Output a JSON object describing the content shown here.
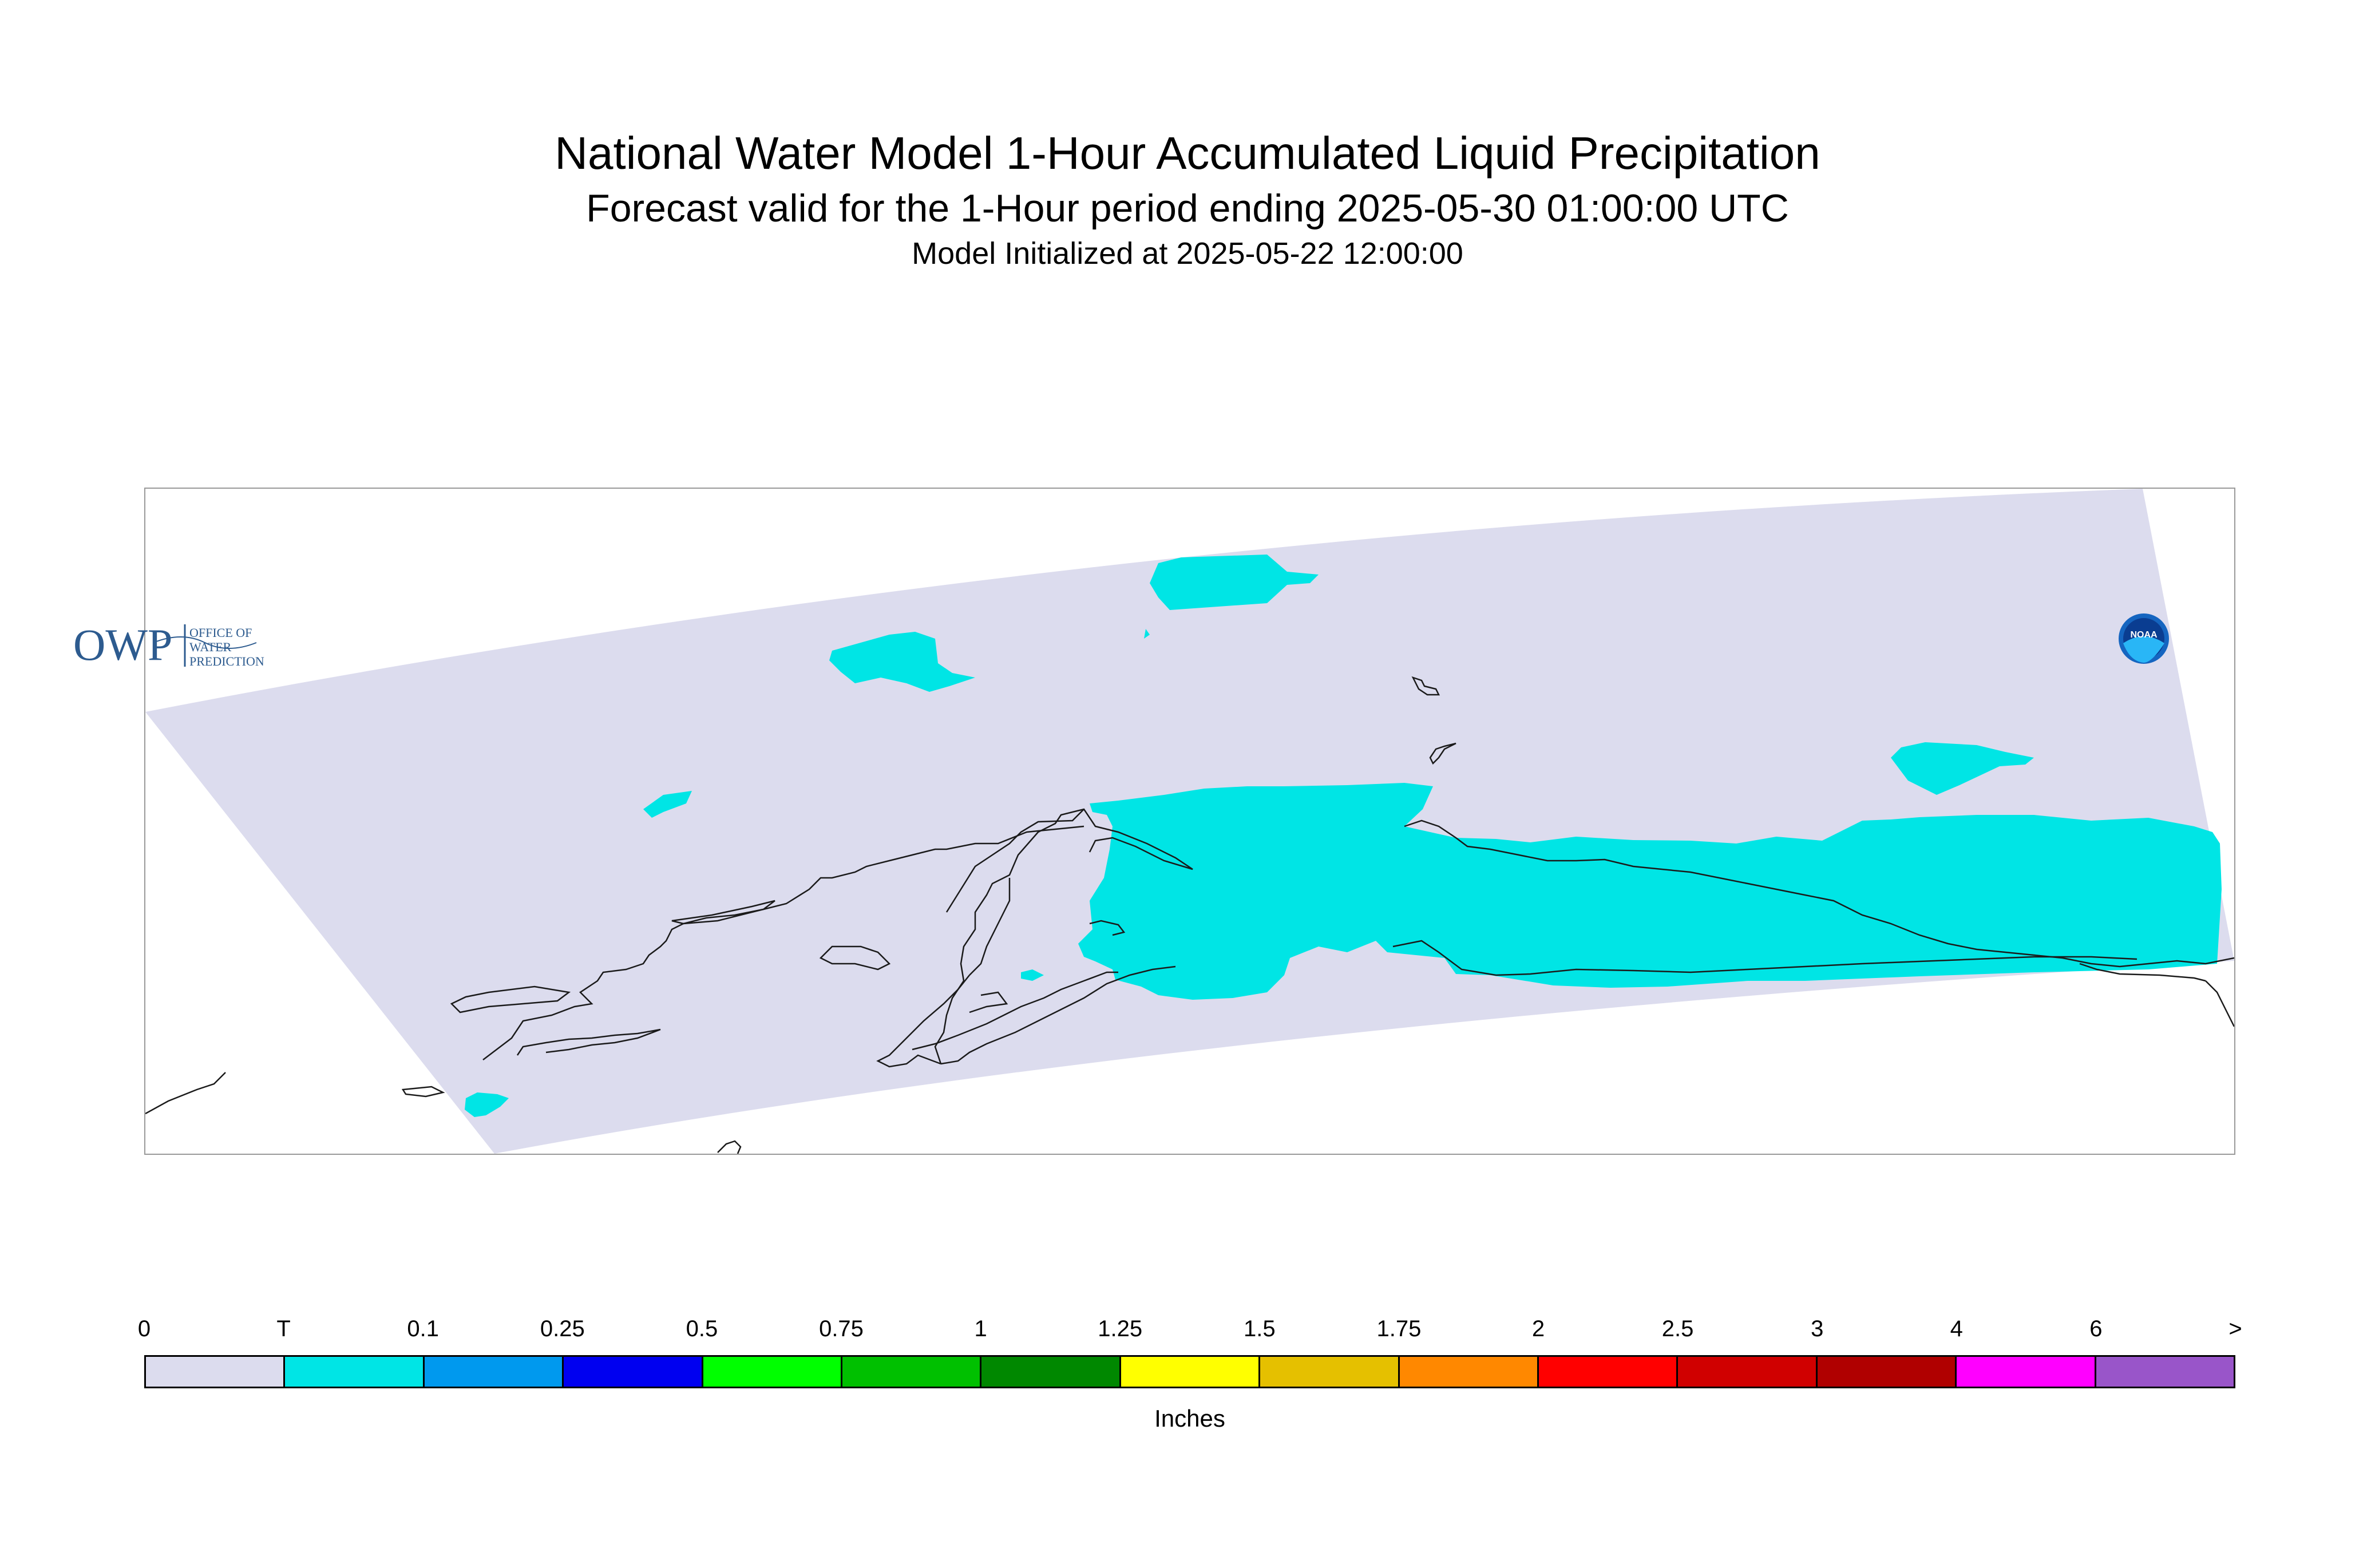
{
  "title": "National Water Model 1-Hour Accumulated Liquid Precipitation",
  "subtitle": "Forecast valid for the 1-Hour period ending 2025-05-30 01:00:00 UTC",
  "init_line": "Model Initialized at 2025-05-22 12:00:00",
  "map": {
    "domain_fill": "#dcdcee",
    "precip_fill": "#00e5e5",
    "coastline_color": "#1a1a1a",
    "precip_category": "T"
  },
  "logos": {
    "owp_mark": "OWP",
    "owp_text": [
      "OFFICE OF",
      "WATER",
      "PREDICTION"
    ],
    "noaa_text": "NOAA"
  },
  "legend": {
    "tick_labels": [
      "0",
      "T",
      "0.1",
      "0.25",
      "0.5",
      "0.75",
      "1",
      "1.25",
      "1.5",
      "1.75",
      "2",
      "2.5",
      "3",
      "4",
      "6",
      ">"
    ],
    "colors": [
      "#dcdcee",
      "#00e5e5",
      "#0099ee",
      "#0000f0",
      "#00ff00",
      "#00c000",
      "#008800",
      "#ffff00",
      "#e5c000",
      "#ff8800",
      "#ff0000",
      "#d00000",
      "#b00000",
      "#ff00ff",
      "#9955c9"
    ],
    "units": "Inches"
  }
}
